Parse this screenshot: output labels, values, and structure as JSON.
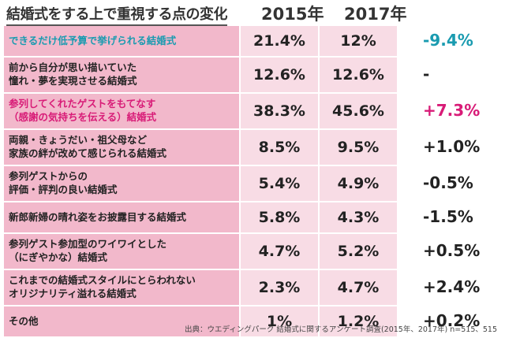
{
  "title": "結婚式をする上で重視する点の変化",
  "source": "出典：ウエディングパーク 結婚式に関するアンケート調査(2015年、2017年) n=515、515",
  "colors": {
    "row_dark": "#f2b8cb",
    "row_light": "#f8dce5",
    "accent_teal": "#1a9bb0",
    "accent_pink": "#d81b77",
    "text": "#222222"
  },
  "chart_data": {
    "type": "table",
    "columns": [
      "2015年",
      "2017年"
    ],
    "rows": [
      {
        "label_lines": [
          "できるだけ低予算で挙げられる結婚式"
        ],
        "v2015": "21.4%",
        "v2017": "12%",
        "diff": "-9.4%",
        "highlight": "teal"
      },
      {
        "label_lines": [
          "前から自分が思い描いていた",
          "憧れ・夢を実現させる結婚式"
        ],
        "v2015": "12.6%",
        "v2017": "12.6%",
        "diff": "-",
        "highlight": ""
      },
      {
        "label_lines": [
          "参列してくれたゲストをもてなす",
          "（感謝の気持ちを伝える）結婚式"
        ],
        "v2015": "38.3%",
        "v2017": "45.6%",
        "diff": "+7.3%",
        "highlight": "pink"
      },
      {
        "label_lines": [
          "両親・きょうだい・祖父母など",
          "家族の絆が改めて感じられる結婚式"
        ],
        "v2015": "8.5%",
        "v2017": "9.5%",
        "diff": "+1.0%",
        "highlight": ""
      },
      {
        "label_lines": [
          "参列ゲストからの",
          "評価・評判の良い結婚式"
        ],
        "v2015": "5.4%",
        "v2017": "4.9%",
        "diff": "-0.5%",
        "highlight": ""
      },
      {
        "label_lines": [
          "新郎新婦の晴れ姿をお披露目する結婚式"
        ],
        "v2015": "5.8%",
        "v2017": "4.3%",
        "diff": "-1.5%",
        "highlight": ""
      },
      {
        "label_lines": [
          "参列ゲスト参加型のワイワイとした",
          "（にぎやかな）結婚式"
        ],
        "v2015": "4.7%",
        "v2017": "5.2%",
        "diff": "+0.5%",
        "highlight": ""
      },
      {
        "label_lines": [
          "これまでの結婚式スタイルにとらわれない",
          "オリジナリティ溢れる結婚式"
        ],
        "v2015": "2.3%",
        "v2017": "4.7%",
        "diff": "+2.4%",
        "highlight": ""
      },
      {
        "label_lines": [
          "その他"
        ],
        "v2015": "1%",
        "v2017": "1.2%",
        "diff": "+0.2%",
        "highlight": ""
      }
    ]
  }
}
